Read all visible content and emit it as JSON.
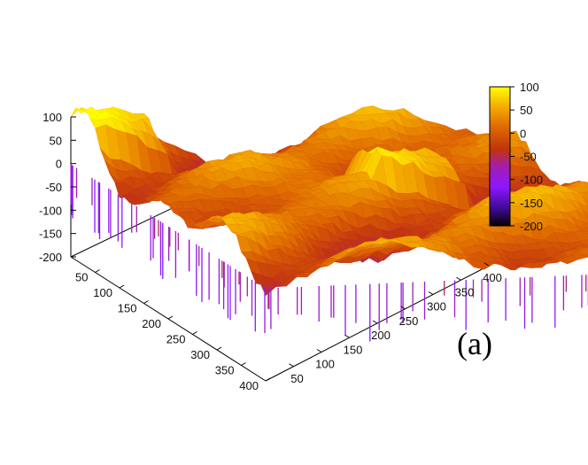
{
  "panel_label": "(a)",
  "chart_data": {
    "type": "surface",
    "title": "",
    "xlabel": "",
    "ylabel": "",
    "zlabel": "",
    "x_ticks": [
      "50",
      "100",
      "150",
      "200",
      "250",
      "300",
      "350",
      "400"
    ],
    "y_ticks": [
      "50",
      "100",
      "150",
      "200",
      "250",
      "300",
      "350",
      "400"
    ],
    "z_ticks": [
      "100",
      "50",
      "0",
      "-50",
      "-100",
      "-150",
      "-200"
    ],
    "x_range": [
      0,
      400
    ],
    "y_range": [
      0,
      400
    ],
    "z_range": [
      -200,
      100
    ],
    "colorbar": {
      "ticks": [
        "100",
        "50",
        "0",
        "-50",
        "-100",
        "-150",
        "-200"
      ],
      "range": [
        -200,
        100
      ],
      "colors": [
        "#000000",
        "#3b0a8f",
        "#8c18ff",
        "#a21db5",
        "#c2330d",
        "#e06d00",
        "#f6b300",
        "#ffff00"
      ]
    },
    "surface_description": "rough terrain surface, heights mostly between -50 and 80, with deep spikes down to about -180",
    "grid": false
  }
}
